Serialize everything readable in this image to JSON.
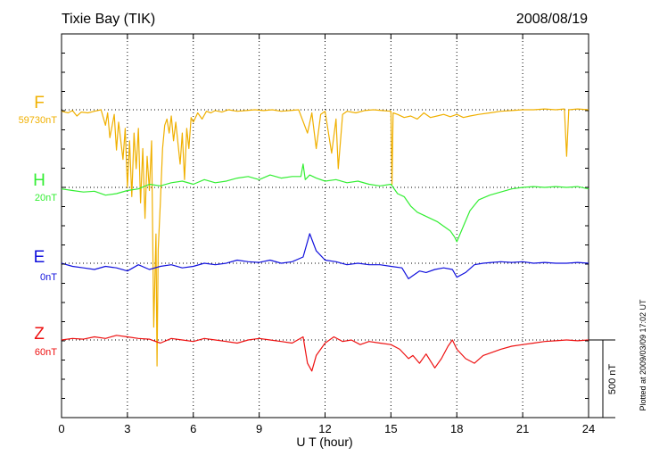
{
  "chart_data": {
    "type": "line",
    "title": "Tixie Bay (TIK)",
    "date": "2008/08/19",
    "xlabel": "U T (hour)",
    "xlim": [
      0,
      24
    ],
    "x_ticks": [
      "0",
      "3",
      "6",
      "9",
      "12",
      "15",
      "18",
      "21",
      "24"
    ],
    "scale_bar_label": "500 nT",
    "scale_bar_value_nT": 500,
    "plot_footnote": "Plotted at 2009/03/09 17:02 UT",
    "grid": "dotted vertical every 3 hours, dotted baseline per trace",
    "series": [
      {
        "name": "F",
        "baseline_label": "59730nT",
        "color": "#f0b000",
        "x": [
          0,
          0.3,
          0.5,
          0.7,
          0.9,
          1.2,
          1.5,
          1.8,
          2.0,
          2.1,
          2.2,
          2.4,
          2.5,
          2.6,
          2.8,
          2.9,
          3.0,
          3.1,
          3.2,
          3.3,
          3.4,
          3.5,
          3.6,
          3.7,
          3.8,
          3.9,
          4.0,
          4.1,
          4.2,
          4.3,
          4.35,
          4.4,
          4.5,
          4.6,
          4.7,
          4.8,
          4.9,
          5.0,
          5.1,
          5.2,
          5.4,
          5.5,
          5.6,
          5.7,
          5.8,
          5.9,
          6.0,
          6.2,
          6.4,
          6.6,
          6.8,
          7.0,
          7.3,
          7.6,
          8.0,
          8.4,
          8.8,
          9.2,
          9.6,
          10.0,
          10.4,
          10.8,
          11.2,
          11.4,
          11.6,
          11.8,
          12.0,
          12.3,
          12.5,
          12.6,
          12.8,
          13.0,
          13.4,
          13.8,
          14.2,
          14.6,
          15.0,
          15.05,
          15.1,
          15.3,
          15.6,
          15.9,
          16.2,
          16.5,
          16.8,
          17.1,
          17.4,
          17.7,
          18.0,
          18.3,
          18.6,
          19.0,
          19.5,
          20.0,
          20.5,
          21.0,
          21.5,
          22.0,
          22.5,
          22.9,
          23.0,
          23.1,
          23.5,
          24.0
        ],
        "y": [
          -10,
          -20,
          -5,
          -40,
          -15,
          -20,
          -10,
          0,
          -100,
          -20,
          -180,
          -30,
          -260,
          -80,
          -320,
          -120,
          -500,
          -200,
          -560,
          -150,
          -380,
          -120,
          -600,
          -250,
          -700,
          -300,
          -520,
          -200,
          -1400,
          -800,
          -1650,
          -900,
          -600,
          -250,
          -100,
          -60,
          -150,
          -40,
          -200,
          -80,
          -350,
          -150,
          -450,
          -120,
          -250,
          -50,
          -80,
          -20,
          -60,
          -10,
          -20,
          -5,
          -15,
          0,
          -10,
          -5,
          0,
          -5,
          0,
          -10,
          -5,
          0,
          -150,
          -20,
          -250,
          -30,
          -10,
          -280,
          -60,
          -380,
          -30,
          -10,
          -20,
          -5,
          0,
          -5,
          -10,
          -480,
          -20,
          -30,
          -50,
          -40,
          -60,
          -20,
          -50,
          -40,
          -30,
          -45,
          -30,
          -50,
          -40,
          -30,
          -20,
          -10,
          -5,
          0,
          0,
          5,
          0,
          5,
          -300,
          0,
          5,
          0
        ]
      },
      {
        "name": "H",
        "baseline_label": "20nT",
        "color": "#33ee33",
        "x": [
          0,
          0.5,
          1.0,
          1.5,
          2.0,
          2.5,
          3.0,
          3.5,
          4.0,
          4.5,
          5.0,
          5.5,
          6.0,
          6.5,
          7.0,
          7.5,
          8.0,
          8.5,
          9.0,
          9.5,
          10.0,
          10.5,
          10.9,
          11.0,
          11.1,
          11.3,
          11.6,
          12.0,
          12.5,
          13.0,
          13.5,
          14.0,
          14.5,
          15.0,
          15.3,
          15.6,
          15.9,
          16.2,
          16.5,
          16.8,
          17.1,
          17.4,
          17.7,
          17.9,
          18.0,
          18.3,
          18.6,
          19.0,
          19.5,
          20.0,
          20.5,
          21.0,
          21.5,
          22.0,
          22.5,
          23.0,
          23.5,
          24.0
        ],
        "y": [
          -10,
          -20,
          -30,
          -25,
          -50,
          -40,
          -20,
          -10,
          20,
          10,
          30,
          40,
          20,
          50,
          30,
          40,
          60,
          70,
          50,
          80,
          60,
          70,
          70,
          150,
          50,
          80,
          60,
          40,
          50,
          30,
          40,
          20,
          10,
          20,
          -40,
          -60,
          -120,
          -160,
          -180,
          -200,
          -220,
          -250,
          -280,
          -320,
          -350,
          -250,
          -150,
          -80,
          -50,
          -30,
          -10,
          0,
          5,
          0,
          5,
          0,
          5,
          -10
        ]
      },
      {
        "name": "E",
        "baseline_label": "0nT",
        "color": "#1111dd",
        "x": [
          0,
          0.5,
          1.0,
          1.5,
          2.0,
          2.5,
          3.0,
          3.5,
          4.0,
          4.5,
          5.0,
          5.5,
          6.0,
          6.5,
          7.0,
          7.5,
          8.0,
          8.5,
          9.0,
          9.5,
          10.0,
          10.5,
          11.0,
          11.3,
          11.6,
          12.0,
          12.5,
          13.0,
          13.5,
          14.0,
          14.5,
          15.0,
          15.5,
          15.8,
          16.0,
          16.3,
          16.6,
          17.0,
          17.4,
          17.8,
          18.0,
          18.4,
          18.8,
          19.2,
          19.6,
          20.0,
          20.5,
          21.0,
          21.5,
          22.0,
          22.5,
          23.0,
          23.5,
          24.0
        ],
        "y": [
          0,
          -20,
          -30,
          -40,
          -20,
          -30,
          -50,
          -10,
          -40,
          -20,
          -10,
          -30,
          -20,
          0,
          -10,
          0,
          20,
          10,
          5,
          20,
          0,
          10,
          40,
          190,
          80,
          20,
          10,
          -10,
          0,
          -10,
          -10,
          -20,
          -30,
          -100,
          -80,
          -50,
          -60,
          -40,
          -30,
          -40,
          -90,
          -60,
          -10,
          0,
          5,
          10,
          5,
          10,
          0,
          5,
          0,
          0,
          5,
          0
        ]
      },
      {
        "name": "Z",
        "baseline_label": "60nT",
        "color": "#ee1111",
        "x": [
          0,
          0.5,
          1.0,
          1.5,
          2.0,
          2.5,
          3.0,
          3.5,
          4.0,
          4.5,
          5.0,
          5.5,
          6.0,
          6.5,
          7.0,
          7.5,
          8.0,
          8.5,
          9.0,
          9.5,
          10.0,
          10.5,
          11.0,
          11.2,
          11.4,
          11.6,
          12.0,
          12.4,
          12.8,
          13.2,
          13.6,
          14.0,
          14.5,
          15.0,
          15.4,
          15.8,
          16.0,
          16.3,
          16.6,
          17.0,
          17.3,
          17.6,
          17.8,
          18.0,
          18.4,
          18.8,
          19.2,
          19.6,
          20.0,
          20.5,
          21.0,
          21.5,
          22.0,
          22.5,
          23.0,
          23.5,
          24.0
        ],
        "y": [
          0,
          10,
          5,
          20,
          10,
          30,
          20,
          10,
          5,
          -20,
          10,
          0,
          -10,
          10,
          0,
          -10,
          -20,
          0,
          10,
          0,
          -10,
          -20,
          20,
          -150,
          -200,
          -100,
          -20,
          20,
          -10,
          0,
          -30,
          -10,
          -20,
          -30,
          -60,
          -120,
          -100,
          -150,
          -90,
          -180,
          -120,
          -40,
          0,
          -60,
          -120,
          -150,
          -100,
          -80,
          -60,
          -40,
          -30,
          -20,
          -10,
          -5,
          0,
          -5,
          0
        ]
      }
    ]
  }
}
